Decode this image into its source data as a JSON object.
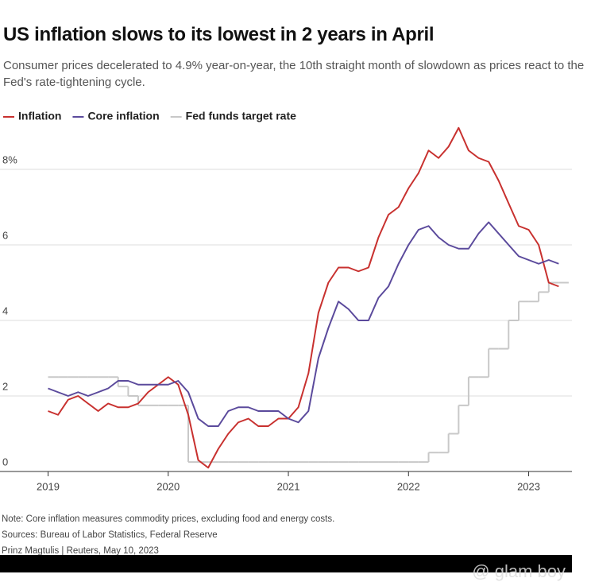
{
  "chart_data": {
    "type": "line",
    "title": "US inflation slows to its lowest in 2 years in April",
    "subtitle": "Consumer prices decelerated to 4.9% year-on-year, the 10th straight month of slowdown as prices react to the Fed's rate-tightening cycle.",
    "notes": [
      "Note: Core inflation measures commodity prices, excluding food and energy costs.",
      "Sources: Bureau of Labor Statistics, Federal Reserve",
      "Prinz Magtulis | Reuters, May 10, 2023"
    ],
    "watermark": "@ glam boy",
    "x": [
      2019,
      2019.083,
      2019.167,
      2019.25,
      2019.333,
      2019.417,
      2019.5,
      2019.583,
      2019.667,
      2019.75,
      2019.833,
      2019.917,
      2020,
      2020.083,
      2020.167,
      2020.25,
      2020.333,
      2020.417,
      2020.5,
      2020.583,
      2020.667,
      2020.75,
      2020.833,
      2020.917,
      2021,
      2021.083,
      2021.167,
      2021.25,
      2021.333,
      2021.417,
      2021.5,
      2021.583,
      2021.667,
      2021.75,
      2021.833,
      2021.917,
      2022,
      2022.083,
      2022.167,
      2022.25,
      2022.333,
      2022.417,
      2022.5,
      2022.583,
      2022.667,
      2022.75,
      2022.833,
      2022.917,
      2023,
      2023.083,
      2023.167,
      2023.25
    ],
    "series": [
      {
        "name": "Inflation",
        "color": "#c8312f",
        "values": [
          1.6,
          1.5,
          1.9,
          2.0,
          1.8,
          1.6,
          1.8,
          1.7,
          1.7,
          1.8,
          2.1,
          2.3,
          2.5,
          2.3,
          1.5,
          0.3,
          0.1,
          0.6,
          1.0,
          1.3,
          1.4,
          1.2,
          1.2,
          1.4,
          1.4,
          1.7,
          2.6,
          4.2,
          5.0,
          5.4,
          5.4,
          5.3,
          5.4,
          6.2,
          6.8,
          7.0,
          7.5,
          7.9,
          8.5,
          8.3,
          8.6,
          9.1,
          8.5,
          8.3,
          8.2,
          7.7,
          7.1,
          6.5,
          6.4,
          6.0,
          5.0,
          4.9
        ]
      },
      {
        "name": "Core inflation",
        "color": "#5b4a9c",
        "values": [
          2.2,
          2.1,
          2.0,
          2.1,
          2.0,
          2.1,
          2.2,
          2.4,
          2.4,
          2.3,
          2.3,
          2.3,
          2.3,
          2.4,
          2.1,
          1.4,
          1.2,
          1.2,
          1.6,
          1.7,
          1.7,
          1.6,
          1.6,
          1.6,
          1.4,
          1.3,
          1.6,
          3.0,
          3.8,
          4.5,
          4.3,
          4.0,
          4.0,
          4.6,
          4.9,
          5.5,
          6.0,
          6.4,
          6.5,
          6.2,
          6.0,
          5.9,
          5.9,
          6.3,
          6.6,
          6.3,
          6.0,
          5.7,
          5.6,
          5.5,
          5.6,
          5.5
        ]
      },
      {
        "name": "Fed funds target rate",
        "color": "#c8c8c8",
        "step": true,
        "values": [
          2.5,
          2.5,
          2.5,
          2.5,
          2.5,
          2.5,
          2.5,
          2.25,
          2.0,
          1.75,
          1.75,
          1.75,
          1.75,
          1.75,
          0.25,
          0.25,
          0.25,
          0.25,
          0.25,
          0.25,
          0.25,
          0.25,
          0.25,
          0.25,
          0.25,
          0.25,
          0.25,
          0.25,
          0.25,
          0.25,
          0.25,
          0.25,
          0.25,
          0.25,
          0.25,
          0.25,
          0.25,
          0.25,
          0.5,
          0.5,
          1.0,
          1.75,
          2.5,
          2.5,
          3.25,
          3.25,
          4.0,
          4.5,
          4.5,
          4.75,
          5.0,
          5.0
        ]
      }
    ],
    "xlim": [
      2018.6,
      2023.36
    ],
    "xticks": [
      2019,
      2020,
      2021,
      2022,
      2023
    ],
    "ylim": [
      0,
      10
    ],
    "yticks": [
      0,
      2,
      4,
      6,
      {
        "value": 8,
        "label": "8%"
      }
    ],
    "grid": true
  }
}
